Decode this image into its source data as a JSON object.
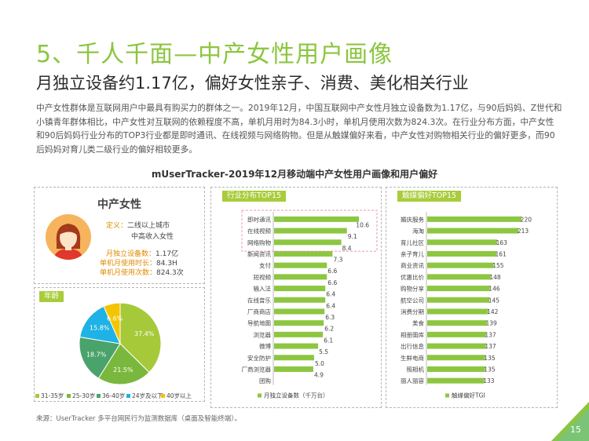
{
  "header": {
    "title": "5、千人千面—中产女性用户画像",
    "subtitle": "月独立设备约1.17亿，偏好女性亲子、消费、美化相关行业",
    "intro": "中产女性群体是互联网用户中最具有购买力的群体之一。2019年12月，中国互联网中产女性月独立设备数为1.17亿，与90后妈妈、Z世代和小镇青年群体相比，中产女性对互联网的依赖程度不高，单机月用时为84.3小时，单机月使用次数为824.3次。在行业分布方面，中产女性和90后妈妈行业分布的TOP3行业都是即时通讯、在线视频与网络购物。但是从触媒偏好来看，中产女性对购物相关行业的偏好更多，而90后妈妈对育儿类二级行业的偏好相较更多。"
  },
  "chart_main_title": "mUserTracker-2019年12月移动端中产女性用户画像和用户偏好",
  "persona": {
    "name": "中产女性",
    "def_label": "定义：",
    "def_line1": "二线以上城市",
    "def_line2": "中高收入女性",
    "stats": [
      {
        "label": "月独立设备数：",
        "value": "1.17亿"
      },
      {
        "label": "单机月使用时长：",
        "value": "84.3H"
      },
      {
        "label": "单机月使用次数：",
        "value": "824.3次"
      }
    ]
  },
  "age_panel": {
    "tag": "年龄"
  },
  "industry_panel": {
    "tag": "行业分布TOP15",
    "legend": "月独立设备数（千万台）"
  },
  "media_panel": {
    "tag": "触媒偏好TOP15",
    "legend": "触媒偏好TGI"
  },
  "footer": "来源：UserTracker 多平台网民行为监测数据库（桌面及智能终端）。",
  "page_number": "15",
  "colors": {
    "accent_green": "#8cc63f",
    "bar_green": "#8dc641",
    "highlight_box": "#e89aa8",
    "tag_bg": "#a9cc3b",
    "orange": "#e08b00"
  },
  "chart_data": [
    {
      "type": "pie",
      "title": "年龄",
      "slices": [
        {
          "name": "31-35岁",
          "value": 37.4,
          "color": "#a6c93a"
        },
        {
          "name": "25-30岁",
          "value": 21.5,
          "color": "#7ab83d"
        },
        {
          "name": "36-40岁",
          "value": 18.7,
          "color": "#4aa36b"
        },
        {
          "name": "24岁及以下",
          "value": 15.8,
          "color": "#1fb2e6"
        },
        {
          "name": "40岁以上",
          "value": 6.6,
          "color": "#f2c500"
        }
      ],
      "legend_labels": [
        "31-35岁",
        "25-30岁",
        "36-40岁",
        "24岁及以下",
        "40岁以上"
      ],
      "value_labels": [
        "37.4%",
        "21.5%",
        "18.7%",
        "15.8%",
        "6.6%"
      ]
    },
    {
      "type": "bar",
      "title": "行业分布TOP15",
      "orientation": "horizontal",
      "categories": [
        "即时通讯",
        "在线视频",
        "网络购物",
        "新闻资讯",
        "支付",
        "短视频",
        "输入法",
        "在线音乐",
        "厂商商店",
        "导航地图",
        "浏览器",
        "微博",
        "安全防护",
        "厂商浏览器",
        "团购"
      ],
      "values": [
        10.6,
        9.1,
        8.4,
        7.3,
        6.6,
        6.6,
        6.4,
        6.4,
        6.3,
        6.2,
        6.1,
        5.5,
        5.0,
        4.9,
        null
      ],
      "value_labels": [
        "10.6",
        "9.1",
        "8.4",
        "7.3",
        "6.6",
        "6.6",
        "6.4",
        "6.4",
        "6.3",
        "6.2",
        "6.1",
        "5.5",
        "5.0",
        "4.9",
        ""
      ],
      "legend": "月独立设备数（千万台）",
      "highlight_top": 3
    },
    {
      "type": "bar",
      "title": "触媒偏好TOP15",
      "orientation": "horizontal",
      "categories": [
        "婚庆服务",
        "海淘",
        "育儿社区",
        "亲子育儿",
        "商业资讯",
        "优惠比价",
        "购物分享",
        "航空公司",
        "消费分期",
        "美食",
        "相册图库",
        "出行信息",
        "生鲜电商",
        "照相机",
        "丽人丽容"
      ],
      "values": [
        220,
        213,
        163,
        161,
        155,
        148,
        146,
        145,
        142,
        139,
        137,
        137,
        135,
        135,
        133
      ],
      "value_labels": [
        "220",
        "213",
        "163",
        "161",
        "155",
        "148",
        "146",
        "145",
        "142",
        "139",
        "137",
        "137",
        "135",
        "135",
        "133"
      ],
      "legend": "触媒偏好TGI"
    }
  ]
}
